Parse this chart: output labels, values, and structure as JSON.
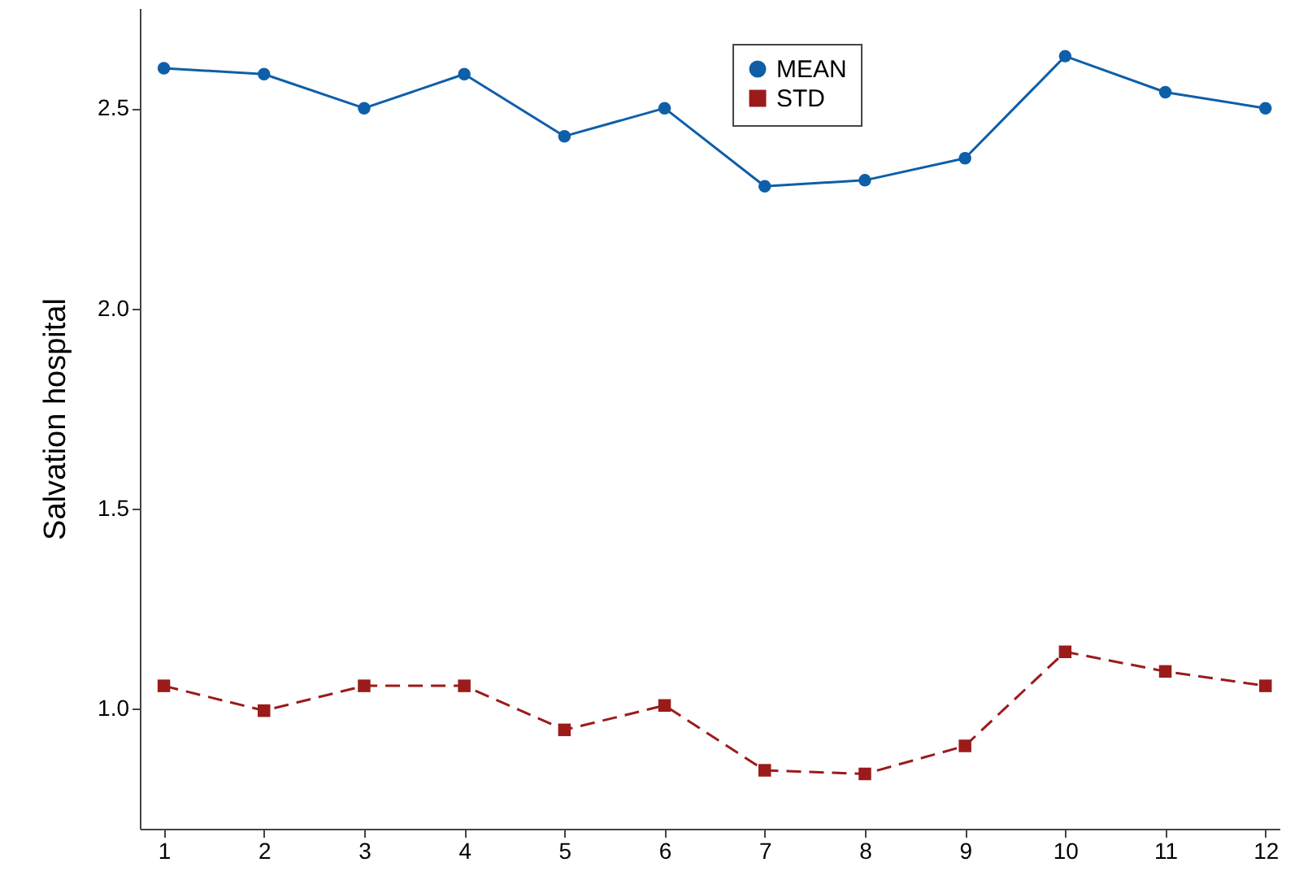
{
  "chart_data": {
    "type": "line",
    "ylabel": "Salvation hospital",
    "x": [
      1,
      2,
      3,
      4,
      5,
      6,
      7,
      8,
      9,
      10,
      11,
      12
    ],
    "xlim": [
      0.76,
      12.14
    ],
    "xticks": [
      1,
      2,
      3,
      4,
      5,
      6,
      7,
      8,
      9,
      10,
      11,
      12
    ],
    "ylim": [
      0.7,
      2.75
    ],
    "yticks": [
      {
        "value": 1,
        "label": "1.0"
      },
      1.5,
      {
        "value": 2,
        "label": "2.0"
      },
      2.5
    ],
    "legend": "top",
    "grid": false,
    "series": [
      {
        "name": "MEAN",
        "color": "#0e5fa8",
        "marker": "circle",
        "line_style": "solid",
        "values": [
          2.6,
          2.585,
          2.5,
          2.585,
          2.43,
          2.5,
          2.305,
          2.32,
          2.375,
          2.63,
          2.54,
          2.5
        ]
      },
      {
        "name": "STD",
        "color": "#9b1b1b",
        "marker": "square",
        "line_style": "dashed",
        "values": [
          1.057,
          0.995,
          1.057,
          1.057,
          0.947,
          1.008,
          0.846,
          0.837,
          0.907,
          1.142,
          1.093,
          1.057
        ]
      }
    ]
  }
}
